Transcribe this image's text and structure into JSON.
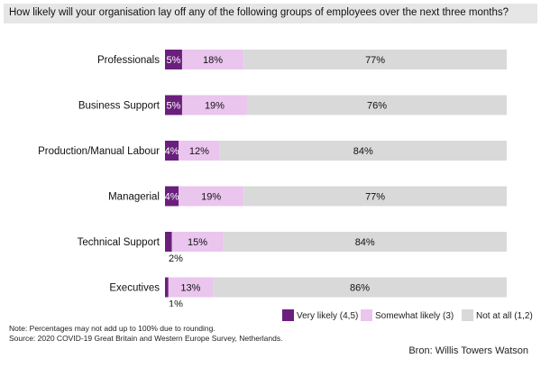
{
  "title": "How likely will your organisation lay off any of the following groups of employees over the next three months?",
  "chart_data": {
    "type": "bar",
    "orientation": "horizontal",
    "stacked": true,
    "categories": [
      "Professionals",
      "Business Support",
      "Production/Manual Labour",
      "Managerial",
      "Technical Support",
      "Executives"
    ],
    "series": [
      {
        "name": "Very likely (4,5)",
        "values": [
          5,
          5,
          4,
          4,
          2,
          1
        ],
        "labels": [
          "5%",
          "5%",
          "4%",
          "4%",
          "2%",
          "1%"
        ],
        "color": "#6b1f7c"
      },
      {
        "name": "Somewhat likely (3)",
        "values": [
          18,
          19,
          12,
          19,
          15,
          13
        ],
        "labels": [
          "18%",
          "19%",
          "12%",
          "19%",
          "15%",
          "13%"
        ],
        "color": "#eac5ee"
      },
      {
        "name": "Not at all (1,2)",
        "values": [
          77,
          76,
          84,
          77,
          84,
          86
        ],
        "labels": [
          "77%",
          "76%",
          "84%",
          "77%",
          "84%",
          "86%"
        ],
        "color": "#d9d9d9"
      }
    ],
    "xlim": [
      0,
      100
    ],
    "grid": false,
    "legend_position": "bottom-right"
  },
  "notes": [
    "Note: Percentages may not add up to 100% due to rounding.",
    "Source: 2020 COVID-19 Great Britain and Western Europe Survey, Netherlands."
  ],
  "source_credit": "Bron: Willis Towers Watson"
}
